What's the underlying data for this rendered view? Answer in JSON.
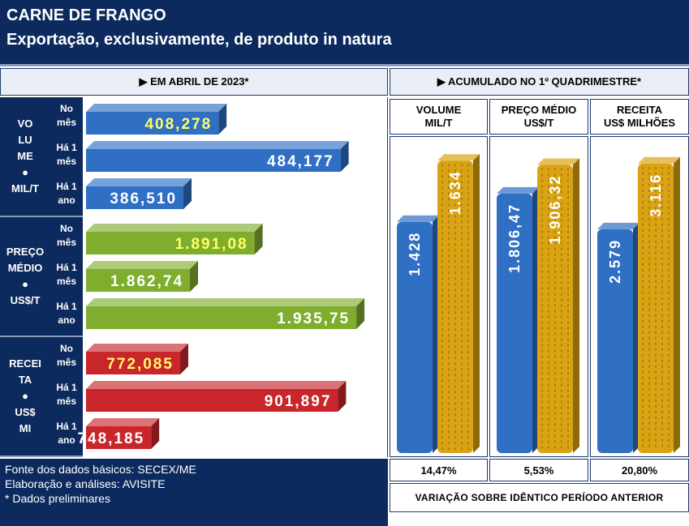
{
  "header": {
    "title": "CARNE DE FRANGO",
    "subtitle": "Exportação, exclusivamente, de produto in natura"
  },
  "sections": {
    "left": "▶ EM ABRIL DE 2023*",
    "right": "▶ ACUMULADO NO 1º QUADRIMESTRE*"
  },
  "rows": [
    {
      "label_lines": [
        "VO",
        "LU",
        "ME",
        "●",
        "MIL/T"
      ]
    },
    {
      "label_lines": [
        "PREÇO",
        "MÉDIO",
        "●",
        "US$/T"
      ]
    },
    {
      "label_lines": [
        "RECEI",
        "TA",
        "●",
        "US$",
        "MI"
      ]
    }
  ],
  "periods": [
    [
      "No",
      "mês"
    ],
    [
      "Há 1",
      "mês"
    ],
    [
      "Há 1",
      "ano"
    ]
  ],
  "right_columns": [
    {
      "line1": "VOLUME",
      "line2": "MIL/T",
      "variation": "14,47%"
    },
    {
      "line1": "PREÇO MÉDIO",
      "line2": "US$/T",
      "variation": "5,53%"
    },
    {
      "line1": "RECEITA",
      "line2": "US$ MILHÕES",
      "variation": "20,80%"
    }
  ],
  "footer": {
    "source": "Fonte dos dados básicos: SECEX/ME",
    "analysis": "Elaboração e análises: AVISITE",
    "note": "* Dados preliminares",
    "variation_label": "VARIAÇÃO SOBRE IDÊNTICO PERÍODO ANTERIOR"
  },
  "colors": {
    "navy": "#0d2a5e",
    "blue": "#2f6fc4",
    "green": "#7fae2e",
    "red": "#c8262b",
    "gold": "#d9a313",
    "highlight_text": "#ffff66"
  },
  "chart_data": [
    {
      "type": "bar",
      "orientation": "horizontal",
      "title": "EM ABRIL DE 2023*",
      "groups": [
        {
          "name": "VOLUME MIL/T",
          "color": "#2f6fc4",
          "categories": [
            "No mês",
            "Há 1 mês",
            "Há 1 ano"
          ],
          "values": [
            408.278,
            484.177,
            386.51
          ],
          "labels": [
            "408,278",
            "484,177",
            "386,510"
          ]
        },
        {
          "name": "PREÇO MÉDIO US$/T",
          "color": "#7fae2e",
          "categories": [
            "No mês",
            "Há 1 mês",
            "Há 1 ano"
          ],
          "values": [
            1891.08,
            1862.74,
            1935.75
          ],
          "labels": [
            "1.891,08",
            "1.862,74",
            "1.935,75"
          ]
        },
        {
          "name": "RECEITA US$ MI",
          "color": "#c8262b",
          "categories": [
            "No mês",
            "Há 1 mês",
            "Há 1 ano"
          ],
          "values": [
            772.085,
            901.897,
            748.185
          ],
          "labels": [
            "772,085",
            "901,897",
            "748,185"
          ]
        }
      ]
    },
    {
      "type": "bar",
      "orientation": "vertical",
      "title": "ACUMULADO NO 1º QUADRIMESTRE*",
      "panels": [
        {
          "name": "VOLUME MIL/T",
          "values": [
            1.428,
            1.634
          ],
          "labels": [
            "1.428",
            "1.634"
          ],
          "colors": [
            "#2f6fc4",
            "#d9a313"
          ]
        },
        {
          "name": "PREÇO MÉDIO US$/T",
          "values": [
            1806.47,
            1906.32
          ],
          "labels": [
            "1.806,47",
            "1.906,32"
          ],
          "colors": [
            "#2f6fc4",
            "#d9a313"
          ]
        },
        {
          "name": "RECEITA US$ MILHÕES",
          "values": [
            2.579,
            3.116
          ],
          "labels": [
            "2.579",
            "3.116"
          ],
          "colors": [
            "#2f6fc4",
            "#d9a313"
          ]
        }
      ]
    }
  ]
}
